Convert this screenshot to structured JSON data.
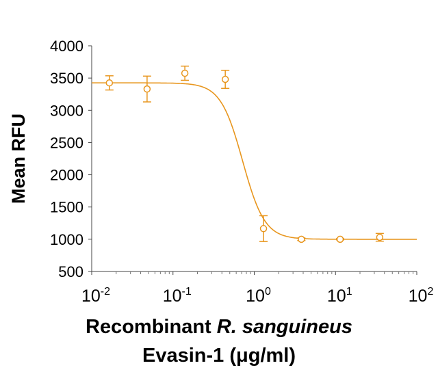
{
  "chart_data": {
    "type": "scatter",
    "title": "",
    "xlabel": "Recombinant R. sanguineus Evasin-1 (μg/ml)",
    "xlabel_parts": {
      "prefix": "Recombinant ",
      "italic": "R. sanguineus",
      "line2": "Evasin-1 (μg/ml)"
    },
    "ylabel": "Mean RFU",
    "xscale": "log",
    "xlim": [
      0.01,
      100
    ],
    "ylim": [
      500,
      4000
    ],
    "x_ticks": [
      "10^-2",
      "10^-1",
      "10^0",
      "10^1",
      "10^2"
    ],
    "x_tick_labels": [
      {
        "base": "10",
        "exp": "-2"
      },
      {
        "base": "10",
        "exp": "-1"
      },
      {
        "base": "10",
        "exp": "0"
      },
      {
        "base": "10",
        "exp": "1"
      },
      {
        "base": "10",
        "exp": "2"
      }
    ],
    "y_ticks": [
      500,
      1000,
      1500,
      2000,
      2500,
      3000,
      3500,
      4000
    ],
    "grid": false,
    "legend": null,
    "color": "#E8961E",
    "series": [
      {
        "name": "Evasin-1",
        "x": [
          0.0165,
          0.048,
          0.14,
          0.44,
          1.3,
          3.8,
          11.4,
          35
        ],
        "y": [
          3425,
          3330,
          3575,
          3480,
          1165,
          1000,
          1000,
          1030
        ],
        "error": [
          110,
          200,
          110,
          140,
          200,
          20,
          10,
          60
        ]
      }
    ],
    "fit": {
      "type": "4PL",
      "top": 3425,
      "bottom": 1000,
      "ec50": 0.72,
      "hill": 3.2
    }
  }
}
